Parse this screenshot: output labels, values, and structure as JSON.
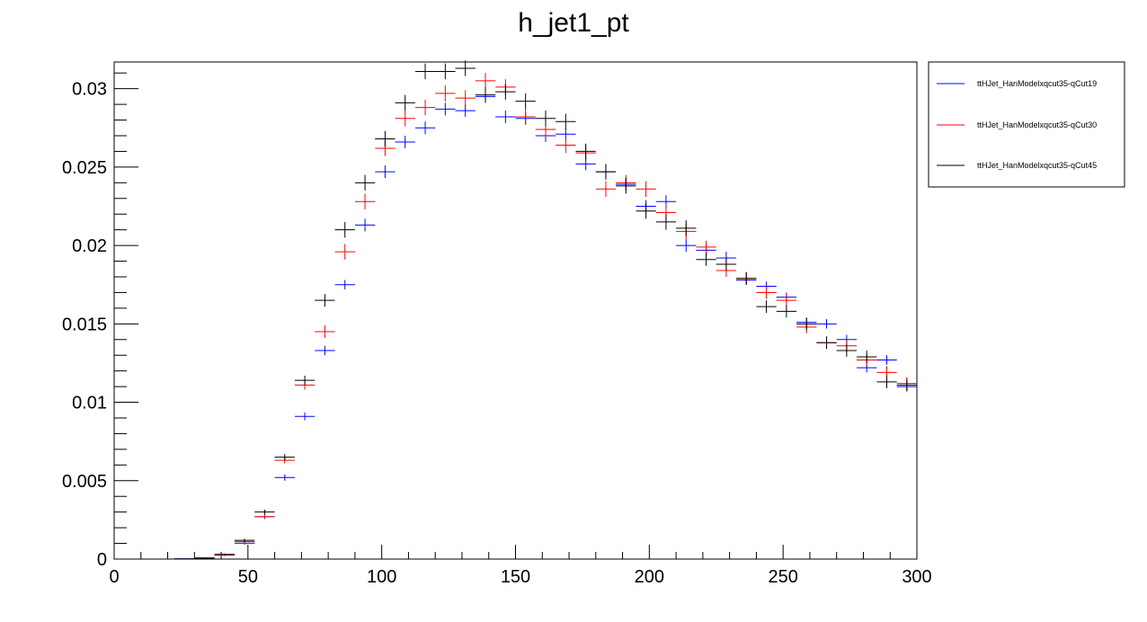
{
  "chart_data": {
    "type": "scatter",
    "title": "h_jet1_pt",
    "xlabel": "",
    "ylabel": "",
    "xlim": [
      0,
      300
    ],
    "ylim": [
      0,
      0.0317
    ],
    "bin_width": 7.5,
    "x_ticks": [
      "0",
      "50",
      "100",
      "150",
      "200",
      "250",
      "300"
    ],
    "y_ticks": [
      "0",
      "0.005",
      "0.01",
      "0.015",
      "0.02",
      "0.025",
      "0.03"
    ],
    "x_tick_values": [
      0,
      50,
      100,
      150,
      200,
      250,
      300
    ],
    "y_tick_values": [
      0,
      0.005,
      0.01,
      0.015,
      0.02,
      0.025,
      0.03
    ],
    "grid": false,
    "legend_position": "right",
    "x": [
      26.25,
      33.75,
      41.25,
      48.75,
      56.25,
      63.75,
      71.25,
      78.75,
      86.25,
      93.75,
      101.25,
      108.75,
      116.25,
      123.75,
      131.25,
      138.75,
      146.25,
      153.75,
      161.25,
      168.75,
      176.25,
      183.75,
      191.25,
      198.75,
      206.25,
      213.75,
      221.25,
      228.75,
      236.25,
      243.75,
      251.25,
      258.75,
      266.25,
      273.75,
      281.25,
      288.75,
      296.25
    ],
    "series": [
      {
        "name": "ttHJet_HanModelxqcut35-qCut19",
        "color": "#0000ff",
        "values": [
          2e-05,
          8e-05,
          0.00025,
          0.0011,
          0.0027,
          0.0052,
          0.0091,
          0.0133,
          0.0175,
          0.0213,
          0.0247,
          0.0266,
          0.0275,
          0.0287,
          0.0286,
          0.0295,
          0.0282,
          0.0281,
          0.027,
          0.0271,
          0.0252,
          0.0247,
          0.0239,
          0.0225,
          0.0228,
          0.02,
          0.0197,
          0.0192,
          0.0178,
          0.0174,
          0.0167,
          0.0151,
          0.015,
          0.014,
          0.0122,
          0.0127,
          0.011
        ],
        "errors": [
          1e-05,
          3e-05,
          5e-05,
          0.0001,
          0.00015,
          0.0002,
          0.00025,
          0.0003,
          0.0003,
          0.0004,
          0.0004,
          0.0004,
          0.0004,
          0.0004,
          0.0004,
          0.0004,
          0.0004,
          0.0004,
          0.0004,
          0.0004,
          0.0004,
          0.0004,
          0.0004,
          0.0004,
          0.0004,
          0.0004,
          0.0004,
          0.0004,
          0.0003,
          0.0003,
          0.0003,
          0.0003,
          0.0003,
          0.0003,
          0.0003,
          0.0003,
          0.0003
        ]
      },
      {
        "name": "ttHJet_HanModelxqcut35-qCut30",
        "color": "#ff0000",
        "values": [
          1e-05,
          5e-05,
          0.00025,
          0.001,
          0.0027,
          0.0063,
          0.0111,
          0.0145,
          0.0196,
          0.0228,
          0.0262,
          0.0281,
          0.0288,
          0.0297,
          0.0294,
          0.0305,
          0.0301,
          0.0282,
          0.0274,
          0.0264,
          0.0259,
          0.0236,
          0.024,
          0.0236,
          0.0221,
          0.0209,
          0.0199,
          0.0184,
          0.0179,
          0.017,
          0.0165,
          0.0148,
          0.0138,
          0.0136,
          0.0127,
          0.0119,
          0.0112
        ],
        "errors": [
          1e-05,
          3e-05,
          5e-05,
          0.0001,
          0.00015,
          0.0002,
          0.0003,
          0.0004,
          0.0005,
          0.0005,
          0.0005,
          0.0005,
          0.0005,
          0.0005,
          0.0005,
          0.0005,
          0.0005,
          0.0005,
          0.0005,
          0.0005,
          0.0005,
          0.0005,
          0.0005,
          0.0005,
          0.0005,
          0.0005,
          0.0004,
          0.0004,
          0.0004,
          0.0004,
          0.0004,
          0.0004,
          0.0004,
          0.0004,
          0.0004,
          0.0004,
          0.0004
        ]
      },
      {
        "name": "ttHJet_HanModelxqcut35-qCut45",
        "color": "#000000",
        "values": [
          1e-05,
          5e-05,
          0.0003,
          0.0012,
          0.003,
          0.0065,
          0.0114,
          0.0165,
          0.021,
          0.024,
          0.0268,
          0.0291,
          0.0311,
          0.0311,
          0.0313,
          0.0296,
          0.0298,
          0.0292,
          0.0281,
          0.0279,
          0.026,
          0.0247,
          0.0238,
          0.0222,
          0.0215,
          0.0211,
          0.0191,
          0.0188,
          0.0179,
          0.0161,
          0.0158,
          0.015,
          0.0138,
          0.0133,
          0.0129,
          0.0113,
          0.0111
        ],
        "errors": [
          1e-05,
          3e-05,
          5e-05,
          0.0001,
          0.00015,
          0.0002,
          0.0003,
          0.0004,
          0.0005,
          0.0005,
          0.0005,
          0.0005,
          0.0005,
          0.0005,
          0.0005,
          0.0005,
          0.0005,
          0.0005,
          0.0005,
          0.0005,
          0.0005,
          0.0005,
          0.0005,
          0.0005,
          0.0005,
          0.0005,
          0.0004,
          0.0004,
          0.0004,
          0.0004,
          0.0004,
          0.0004,
          0.0004,
          0.0004,
          0.0004,
          0.0004,
          0.0004
        ]
      }
    ]
  }
}
